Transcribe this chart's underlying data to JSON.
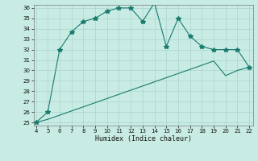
{
  "xlabel": "Humidex (Indice chaleur)",
  "x_data": [
    4,
    5,
    6,
    7,
    8,
    9,
    10,
    11,
    12,
    13,
    14,
    15,
    16,
    17,
    18,
    19,
    20,
    21,
    22
  ],
  "y_curve": [
    25,
    26,
    32,
    33.7,
    34.7,
    35,
    35.7,
    36,
    36,
    34.7,
    36.5,
    32.3,
    35,
    33.3,
    32.3,
    32,
    32,
    32,
    30.3
  ],
  "y_line": [
    25,
    25.3,
    25.7,
    26.1,
    26.5,
    26.9,
    27.3,
    27.7,
    28.1,
    28.5,
    28.9,
    29.3,
    29.7,
    30.1,
    30.5,
    30.9,
    29.5,
    30.0,
    30.3
  ],
  "ylim": [
    25,
    36
  ],
  "xlim": [
    4,
    22
  ],
  "yticks": [
    25,
    26,
    27,
    28,
    29,
    30,
    31,
    32,
    33,
    34,
    35,
    36
  ],
  "xticks": [
    4,
    5,
    6,
    7,
    8,
    9,
    10,
    11,
    12,
    13,
    14,
    15,
    16,
    17,
    18,
    19,
    20,
    21,
    22
  ],
  "line_color": "#1a7a6e",
  "bg_color": "#c8ece4",
  "grid_color": "#aad4cc",
  "marker": "*",
  "marker_size": 4,
  "linewidth": 0.8
}
